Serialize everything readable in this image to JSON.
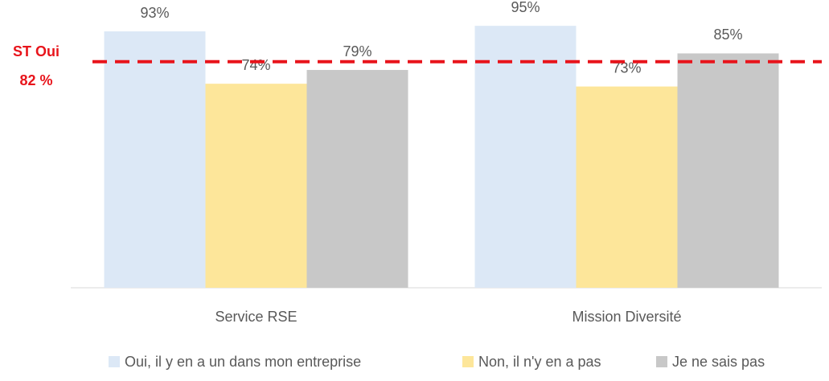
{
  "chart_data": {
    "type": "bar",
    "categories": [
      "Service RSE",
      "Mission Diversité"
    ],
    "series": [
      {
        "name": "Oui, il y en a un dans mon entreprise",
        "color": "#dce8f6",
        "values": [
          93,
          95
        ],
        "value_labels": [
          "93%",
          "95%"
        ]
      },
      {
        "name": "Non, il n'y en a pas",
        "color": "#fde69a",
        "values": [
          74,
          73
        ],
        "value_labels": [
          "74%",
          "73%"
        ]
      },
      {
        "name": "Je ne sais pas",
        "color": "#c8c8c8",
        "values": [
          79,
          85
        ],
        "value_labels": [
          "79%",
          "85%"
        ]
      }
    ],
    "ylim": [
      0,
      100
    ],
    "reference_line": {
      "value": 82,
      "label_lines": [
        "ST Oui",
        "82 %"
      ],
      "color": "#e8141b"
    }
  }
}
